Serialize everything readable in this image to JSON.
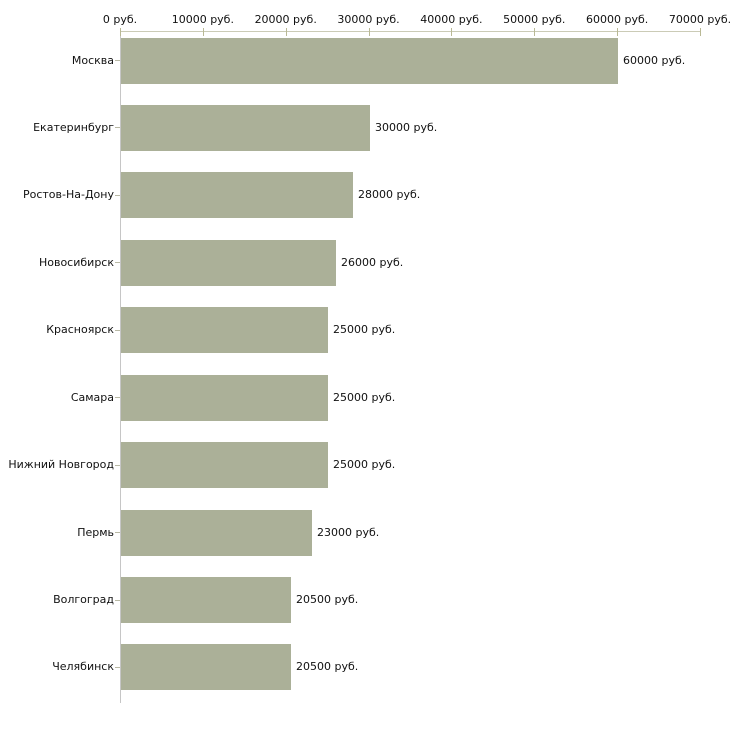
{
  "chart_data": {
    "type": "bar",
    "orientation": "horizontal",
    "title": "",
    "xlabel": "",
    "ylabel": "",
    "unit": "руб.",
    "grid": "off",
    "legend": "none",
    "xlim": [
      0,
      70000
    ],
    "x_tick_values": [
      0,
      10000,
      20000,
      30000,
      40000,
      50000,
      60000,
      70000
    ],
    "x_tick_labels": [
      "0 руб.",
      "10000 руб.",
      "20000 руб.",
      "30000 руб.",
      "40000 руб.",
      "50000 руб.",
      "60000 руб.",
      "70000 руб."
    ],
    "categories": [
      "Москва",
      "Екатеринбург",
      "Ростов-На-Дону",
      "Новосибирск",
      "Красноярск",
      "Самара",
      "Нижний Новгород",
      "Пермь",
      "Волгоград",
      "Челябинск"
    ],
    "values": [
      60000,
      30000,
      28000,
      26000,
      25000,
      25000,
      25000,
      23000,
      20500,
      20500
    ],
    "value_labels": [
      "60000 руб.",
      "30000 руб.",
      "28000 руб.",
      "26000 руб.",
      "25000 руб.",
      "25000 руб.",
      "25000 руб.",
      "23000 руб.",
      "20500 руб.",
      "20500 руб."
    ],
    "colors": {
      "bar": "#abb098",
      "axis_line": "#cbcbb6",
      "y_axis_line": "#c6c6c6",
      "tick": "#b9b995",
      "text": "#111111",
      "background": "#ffffff"
    }
  }
}
